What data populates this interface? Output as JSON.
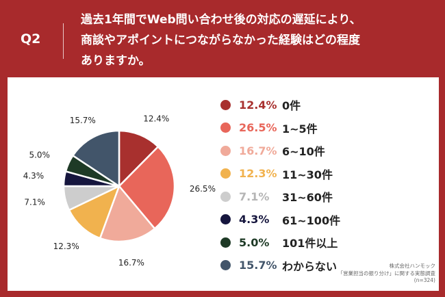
{
  "header": {
    "q_label": "Q2",
    "question_lines": [
      "過去1年間でWeb問い合わせ後の対応の遅延により、",
      "商談やアポイントにつながらなかった経験はどの程度",
      "ありますか。"
    ]
  },
  "chart_data": {
    "type": "pie",
    "categories": [
      "0件",
      "1~5件",
      "6~10件",
      "11~30件",
      "31~60件",
      "61~100件",
      "101件以上",
      "わからない"
    ],
    "values": [
      12.4,
      26.5,
      16.7,
      12.3,
      7.1,
      4.3,
      5.0,
      15.7
    ],
    "labels": [
      "12.4%",
      "26.5%",
      "16.7%",
      "12.3%",
      "7.1%",
      "4.3%",
      "5.0%",
      "15.7%"
    ],
    "colors": [
      "#a8302e",
      "#e8665a",
      "#f0aa9a",
      "#f1b24e",
      "#cdcdcd",
      "#16163e",
      "#1e3a26",
      "#42556a"
    ],
    "legend_placement": "right",
    "start": "top, clockwise"
  },
  "source": {
    "line1": "株式会社ハンモック",
    "line2": "「営業担当の振り分け」に関する実態調査",
    "line3": "(n=324)"
  }
}
